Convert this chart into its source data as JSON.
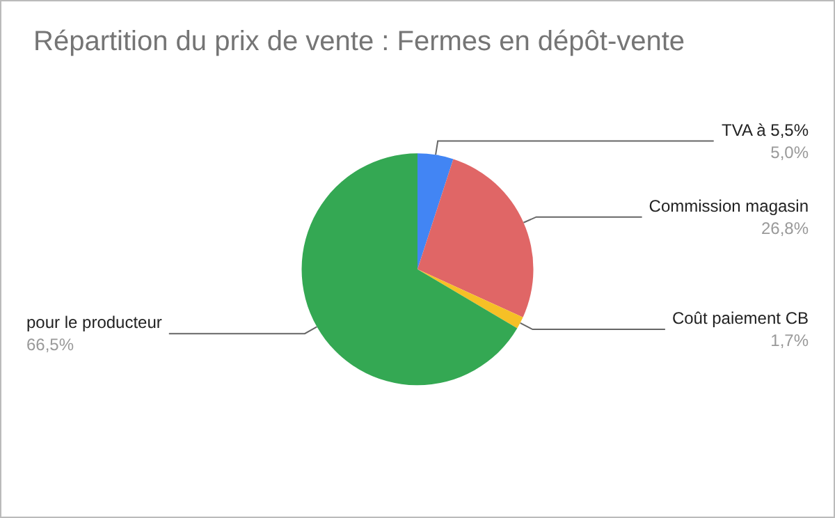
{
  "chart_data": {
    "type": "pie",
    "title": "Répartition du prix de vente : Fermes en dépôt-vente",
    "categories": [
      "TVA à 5,5%",
      "Commission magasin",
      "Coût paiement CB",
      "pour le producteur"
    ],
    "values": [
      5.0,
      26.8,
      1.7,
      66.5
    ],
    "value_labels": [
      "5,0%",
      "26,8%",
      "1,7%",
      "66,5%"
    ],
    "colors": [
      "#4285f4",
      "#e06666",
      "#f6c026",
      "#34a853"
    ]
  }
}
